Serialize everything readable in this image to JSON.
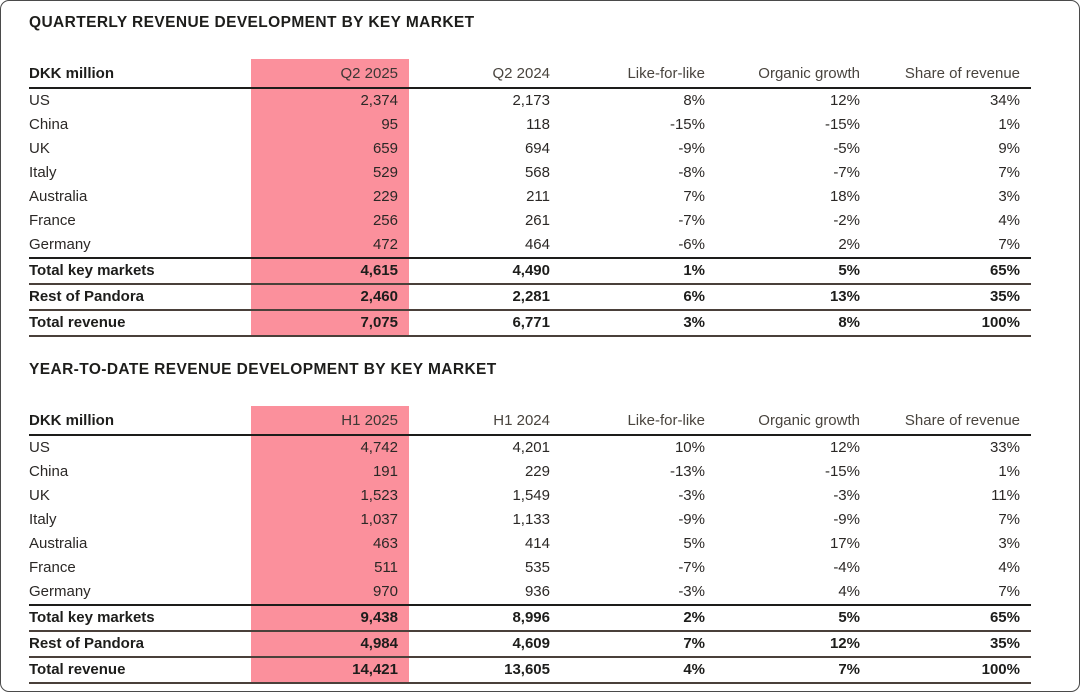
{
  "colors": {
    "highlight": "#fb909c",
    "header_rule": "#1d1d1b",
    "total_rule": "#4a403a",
    "page_border": "#4a4a4a",
    "text_primary": "#1d1d1b",
    "text_body": "#2b2826",
    "text_muted": "#49443e"
  },
  "tables": [
    {
      "title": "QUARTERLY REVENUE DEVELOPMENT BY KEY MARKET",
      "unit_label": "DKK million",
      "columns": [
        "DKK million",
        "Q2 2025",
        "Q2 2024",
        "Like-for-like",
        "Organic growth",
        "Share of revenue"
      ],
      "highlight_column_index": 1,
      "highlight_column_label": "Q2 2025",
      "rows": [
        {
          "cells": [
            "US",
            "2,374",
            "2,173",
            "8%",
            "12%",
            "34%"
          ],
          "bold": false
        },
        {
          "cells": [
            "China",
            "95",
            "118",
            "-15%",
            "-15%",
            "1%"
          ],
          "bold": false
        },
        {
          "cells": [
            "UK",
            "659",
            "694",
            "-9%",
            "-5%",
            "9%"
          ],
          "bold": false
        },
        {
          "cells": [
            "Italy",
            "529",
            "568",
            "-8%",
            "-7%",
            "7%"
          ],
          "bold": false
        },
        {
          "cells": [
            "Australia",
            "229",
            "211",
            "7%",
            "18%",
            "3%"
          ],
          "bold": false
        },
        {
          "cells": [
            "France",
            "256",
            "261",
            "-7%",
            "-2%",
            "4%"
          ],
          "bold": false
        },
        {
          "cells": [
            "Germany",
            "472",
            "464",
            "-6%",
            "2%",
            "7%"
          ],
          "bold": false
        },
        {
          "cells": [
            "Total key markets",
            "4,615",
            "4,490",
            "1%",
            "5%",
            "65%"
          ],
          "bold": true
        },
        {
          "cells": [
            "Rest of Pandora",
            "2,460",
            "2,281",
            "6%",
            "13%",
            "35%"
          ],
          "bold": true
        },
        {
          "cells": [
            "Total revenue",
            "7,075",
            "6,771",
            "3%",
            "8%",
            "100%"
          ],
          "bold": true
        }
      ]
    },
    {
      "title": "YEAR-TO-DATE REVENUE DEVELOPMENT BY KEY MARKET",
      "unit_label": "DKK million",
      "columns": [
        "DKK million",
        "H1 2025",
        "H1 2024",
        "Like-for-like",
        "Organic growth",
        "Share of revenue"
      ],
      "highlight_column_index": 1,
      "highlight_column_label": "H1 2025",
      "rows": [
        {
          "cells": [
            "US",
            "4,742",
            "4,201",
            "10%",
            "12%",
            "33%"
          ],
          "bold": false
        },
        {
          "cells": [
            "China",
            "191",
            "229",
            "-13%",
            "-15%",
            "1%"
          ],
          "bold": false
        },
        {
          "cells": [
            "UK",
            "1,523",
            "1,549",
            "-3%",
            "-3%",
            "11%"
          ],
          "bold": false
        },
        {
          "cells": [
            "Italy",
            "1,037",
            "1,133",
            "-9%",
            "-9%",
            "7%"
          ],
          "bold": false
        },
        {
          "cells": [
            "Australia",
            "463",
            "414",
            "5%",
            "17%",
            "3%"
          ],
          "bold": false
        },
        {
          "cells": [
            "France",
            "511",
            "535",
            "-7%",
            "-4%",
            "4%"
          ],
          "bold": false
        },
        {
          "cells": [
            "Germany",
            "970",
            "936",
            "-3%",
            "4%",
            "7%"
          ],
          "bold": false
        },
        {
          "cells": [
            "Total key markets",
            "9,438",
            "8,996",
            "2%",
            "5%",
            "65%"
          ],
          "bold": true
        },
        {
          "cells": [
            "Rest of Pandora",
            "4,984",
            "4,609",
            "7%",
            "12%",
            "35%"
          ],
          "bold": true
        },
        {
          "cells": [
            "Total revenue",
            "14,421",
            "13,605",
            "4%",
            "7%",
            "100%"
          ],
          "bold": true
        }
      ]
    }
  ]
}
